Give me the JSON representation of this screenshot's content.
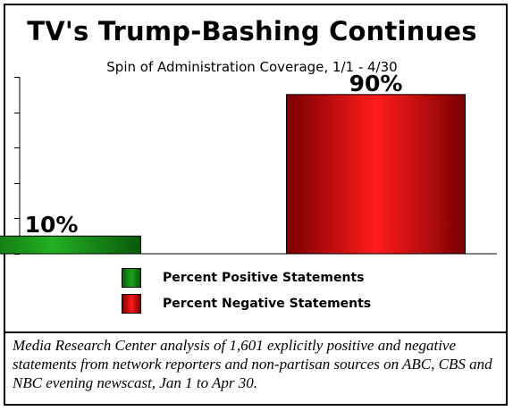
{
  "chart_data": {
    "type": "bar",
    "title": "TV's Trump-Bashing Continues",
    "subtitle": "Spin of Administration Coverage, 1/1 - 4/30",
    "categories": [
      "Percent Positive Statements",
      "Percent Negative Statements"
    ],
    "values": [
      10,
      90
    ],
    "data_labels": [
      "10%",
      "90%"
    ],
    "colors": [
      "#1a8c1a",
      "#d40000"
    ],
    "ylim": [
      0,
      100
    ],
    "grid": false,
    "legend_placement": "bottom-center"
  },
  "legend": {
    "items": [
      {
        "label": "Percent Positive Statements",
        "color": "#1a8c1a"
      },
      {
        "label": "Percent Negative Statements",
        "color": "#d40000"
      }
    ]
  },
  "note": "Media Research Center analysis of 1,601 explicitly positive and negative statements from network reporters and non-partisan sources on ABC, CBS and NBC evening newscast, Jan 1 to Apr 30."
}
